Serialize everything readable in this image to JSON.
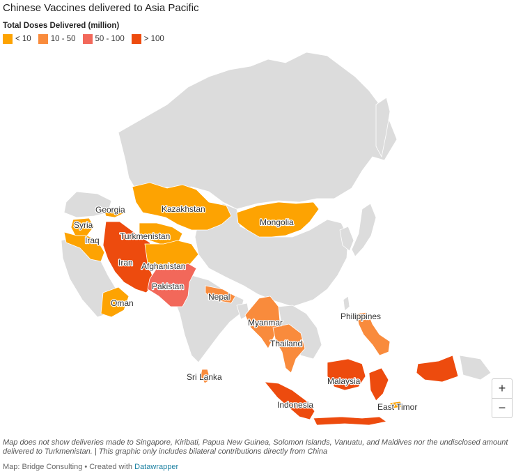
{
  "title": "Chinese Vaccines delivered to Asia Pacific",
  "legend": {
    "title": "Total Doses Delivered (million)",
    "items": [
      {
        "label": "< 10",
        "color": "#fda302"
      },
      {
        "label": "10 - 50",
        "color": "#f98b3c"
      },
      {
        "label": "50 - 100",
        "color": "#f2685a"
      },
      {
        "label": "> 100",
        "color": "#ed4b0e"
      }
    ]
  },
  "map": {
    "base_color": "#dcdcdc",
    "countries": {
      "georgia": {
        "name": "Georgia",
        "band": "< 10"
      },
      "kazakhstan": {
        "name": "Kazakhstan",
        "band": "< 10"
      },
      "syria": {
        "name": "Syria",
        "band": "< 10"
      },
      "iraq": {
        "name": "Iraq",
        "band": "< 10"
      },
      "turkmenistan": {
        "name": "Turkmenistan",
        "band": "< 10"
      },
      "mongolia": {
        "name": "Mongolia",
        "band": "< 10"
      },
      "iran": {
        "name": "Iran",
        "band": "> 100"
      },
      "afghanistan": {
        "name": "Afghanistan",
        "band": "< 10"
      },
      "pakistan": {
        "name": "Pakistan",
        "band": "50 - 100"
      },
      "oman": {
        "name": "Oman",
        "band": "< 10"
      },
      "nepal": {
        "name": "Nepal",
        "band": "10 - 50"
      },
      "philippines": {
        "name": "Philippines",
        "band": "10 - 50"
      },
      "myanmar": {
        "name": "Myanmar",
        "band": "10 - 50"
      },
      "thailand": {
        "name": "Thailand",
        "band": "10 - 50"
      },
      "sri_lanka": {
        "name": "Sri Lanka",
        "band": "10 - 50"
      },
      "malaysia": {
        "name": "Malaysia",
        "band": "> 100"
      },
      "indonesia": {
        "name": "Indonesia",
        "band": "> 100"
      },
      "east_timor": {
        "name": "East Timor",
        "band": "< 10"
      }
    }
  },
  "zoom": {
    "in_label": "+",
    "out_label": "−"
  },
  "notes": "Map does not show deliveries made to Singapore, Kiribati, Papua New Guinea, Solomon Islands, Vanuatu, and Maldives nor the undisclosed amount delivered to Turkmenistan. | This graphic only includes bilateral contributions directly from China",
  "credit": {
    "prefix": "Map: Bridge Consulting • Created with ",
    "link": "Datawrapper"
  }
}
